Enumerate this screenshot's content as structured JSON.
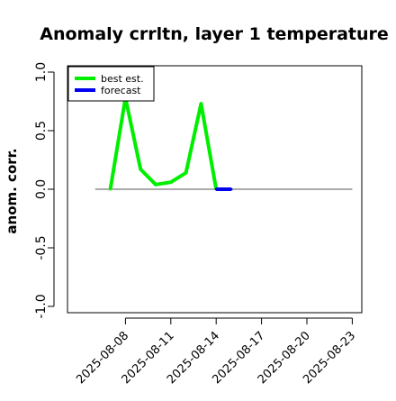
{
  "chart_data": {
    "type": "line",
    "title": "Anomaly crrltn, layer 1 temperature",
    "ylabel": "anom. corr.",
    "xlabel": "",
    "ylim": [
      -1.0,
      1.0
    ],
    "xlim": [
      "2025-08-05",
      "2025-08-24"
    ],
    "y_ticks": [
      {
        "value": -1.0,
        "label": "-1.0"
      },
      {
        "value": -0.5,
        "label": "-0.5"
      },
      {
        "value": 0.0,
        "label": "0.0"
      },
      {
        "value": 0.5,
        "label": "0.5"
      },
      {
        "value": 1.0,
        "label": "1.0"
      }
    ],
    "x_ticks": [
      {
        "value": "2025-08-08",
        "label": "2025-08-08",
        "color": "#000000"
      },
      {
        "value": "2025-08-11",
        "label": "2025-08-11",
        "color": "#000000"
      },
      {
        "value": "2025-08-14",
        "label": "2025-08-14",
        "color": "#228B22"
      },
      {
        "value": "2025-08-17",
        "label": "2025-08-17",
        "color": "#000000"
      },
      {
        "value": "2025-08-20",
        "label": "2025-08-20",
        "color": "#000000"
      },
      {
        "value": "2025-08-23",
        "label": "2025-08-23",
        "color": "#000000"
      }
    ],
    "reference_line": {
      "y": 0.0,
      "from": "2025-08-06",
      "to": "2025-08-23",
      "color": "#555555"
    },
    "grid": false,
    "legend": {
      "position": "top-left"
    },
    "series": [
      {
        "name": "best est.",
        "color": "#00ee00",
        "x": [
          "2025-08-07",
          "2025-08-08",
          "2025-08-09",
          "2025-08-10",
          "2025-08-11",
          "2025-08-12",
          "2025-08-13",
          "2025-08-14"
        ],
        "values": [
          0.0,
          0.78,
          0.17,
          0.04,
          0.06,
          0.14,
          0.73,
          0.0
        ]
      },
      {
        "name": "forecast",
        "color": "#0000ee",
        "x": [
          "2025-08-14",
          "2025-08-15"
        ],
        "values": [
          0.0,
          0.0
        ]
      }
    ]
  }
}
